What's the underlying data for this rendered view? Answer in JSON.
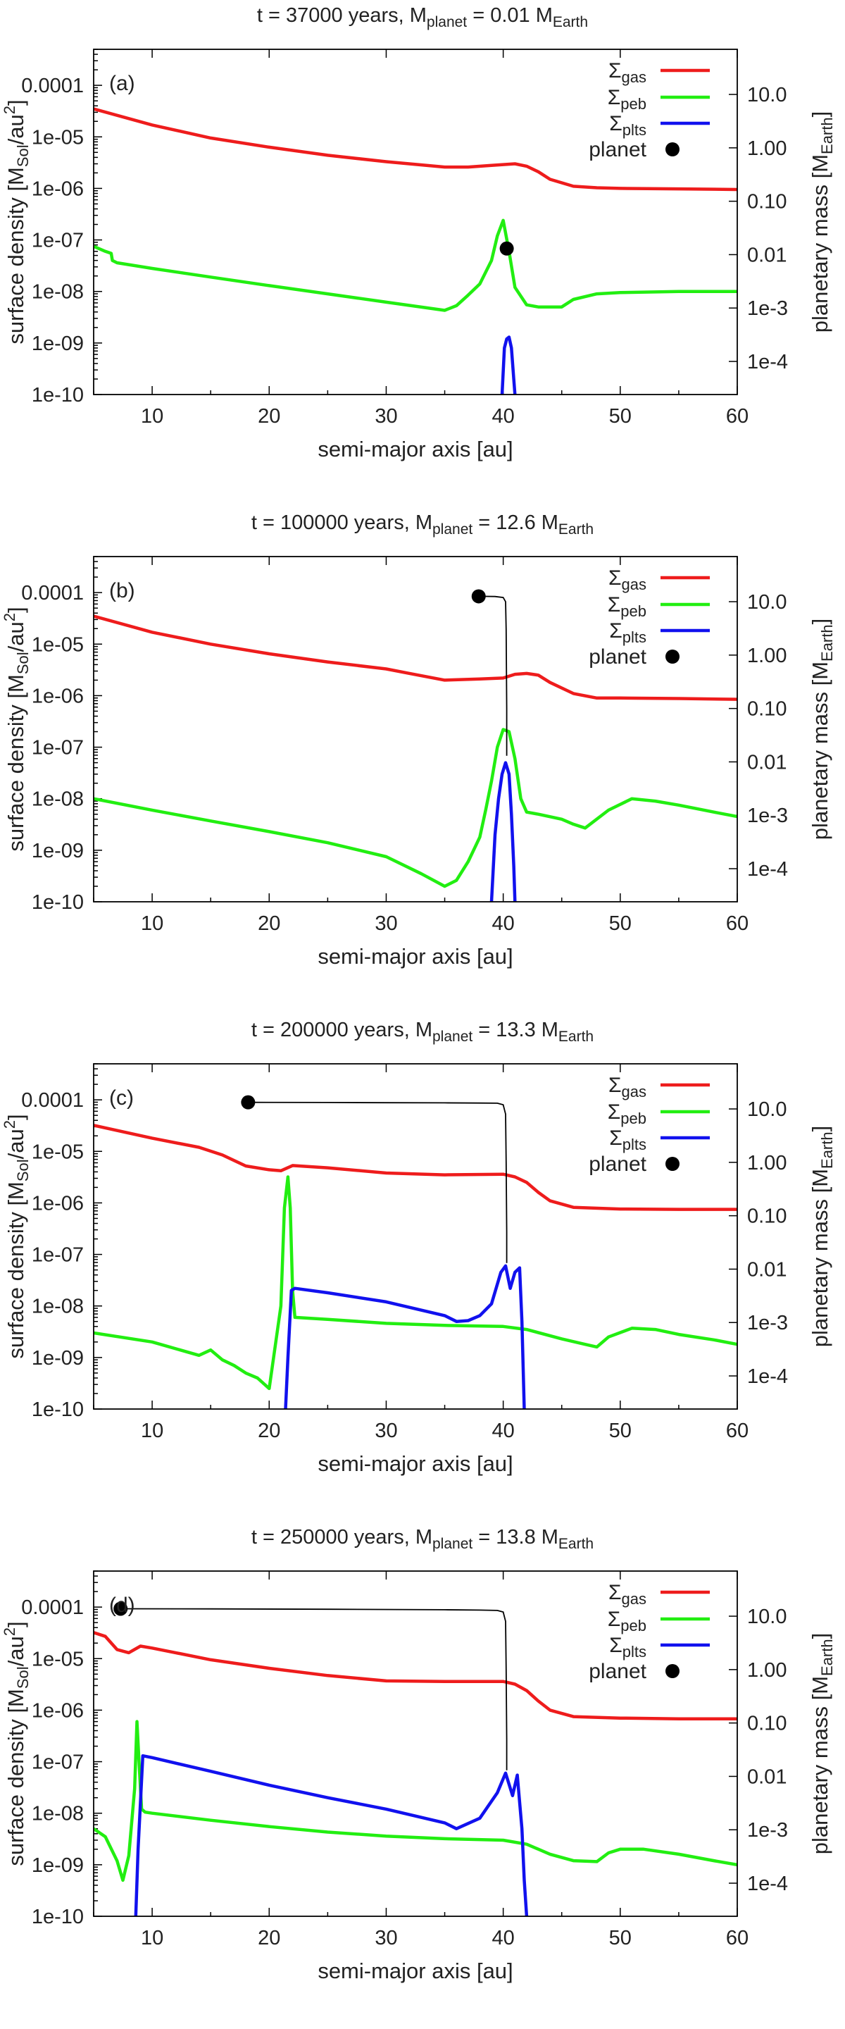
{
  "colors": {
    "gas": "#ee1c1c",
    "peb": "#22ee11",
    "plts": "#1111ee",
    "planet": "#000000",
    "track": "#000000"
  },
  "chart_data": [
    {
      "type": "line",
      "panel_label": "(a)",
      "title": {
        "prefix": "t = 37000 years, M",
        "sub1": "planet",
        "mid": " = 0.01 M",
        "sub2": "Earth"
      },
      "xlabel": "semi-major axis [au]",
      "ylabel": {
        "prefix": "surface density [M",
        "sub": "Sol",
        "suffix": "/au",
        "sup": "2",
        "end": "]"
      },
      "y2label": {
        "prefix": "planetary mass [M",
        "sub": "Earth",
        "end": "]"
      },
      "xlim": [
        5,
        60
      ],
      "ylim": [
        1e-10,
        0.0005
      ],
      "y_scale": "log",
      "y2_scale": "log",
      "x_ticks": [
        "10",
        "20",
        "30",
        "40",
        "50",
        "60"
      ],
      "x_tick_values": [
        10,
        20,
        30,
        40,
        50,
        60
      ],
      "y_ticks": [
        "1e-10",
        "1e-09",
        "1e-08",
        "1e-07",
        "1e-06",
        "1e-05",
        "0.0001"
      ],
      "y_tick_values": [
        1e-10,
        1e-09,
        1e-08,
        1e-07,
        1e-06,
        1e-05,
        0.0001
      ],
      "y2_ticks": [
        "1e-4",
        "1e-3",
        "0.01",
        "0.10",
        "1.00",
        "10.0"
      ],
      "y2_tick_values": [
        0.0001,
        0.001,
        0.01,
        0.1,
        1.0,
        10.0
      ],
      "legend": [
        {
          "sym": "Σ",
          "sub": "gas",
          "key": "gas"
        },
        {
          "sym": "Σ",
          "sub": "peb",
          "key": "peb"
        },
        {
          "sym": "Σ",
          "sub": "plts",
          "key": "plts"
        },
        {
          "sym": "",
          "sub": "",
          "text": "planet",
          "key": "planet"
        }
      ],
      "series": [
        {
          "key": "gas",
          "x": [
            5,
            10,
            15,
            20,
            25,
            30,
            35,
            37,
            39,
            41,
            42,
            43,
            44,
            46,
            48,
            50,
            55,
            60
          ],
          "y": [
            3.5e-05,
            1.7e-05,
            9.5e-06,
            6.3e-06,
            4.4e-06,
            3.3e-06,
            2.6e-06,
            2.6e-06,
            2.8e-06,
            3e-06,
            2.7e-06,
            2.1e-06,
            1.5e-06,
            1.1e-06,
            1.03e-06,
            1e-06,
            9.8e-07,
            9.5e-07
          ]
        },
        {
          "key": "peb",
          "x": [
            5,
            6,
            6.5,
            6.6,
            7,
            10,
            15,
            20,
            25,
            30,
            35,
            36,
            37,
            38,
            39,
            39.5,
            40,
            40.5,
            41,
            42,
            43,
            45,
            46,
            48,
            50,
            55,
            60
          ],
          "y": [
            7.5e-08,
            6e-08,
            5.5e-08,
            4e-08,
            3.6e-08,
            2.8e-08,
            1.9e-08,
            1.3e-08,
            9e-09,
            6.2e-09,
            4.3e-09,
            5.3e-09,
            8.5e-09,
            1.4e-08,
            4e-08,
            1.2e-07,
            2.4e-07,
            6e-08,
            1.2e-08,
            5.5e-09,
            5e-09,
            5e-09,
            7e-09,
            9e-09,
            9.5e-09,
            1e-08,
            1e-08
          ]
        },
        {
          "key": "plts",
          "x": [
            39.9,
            40.1,
            40.3,
            40.5,
            40.7,
            40.9,
            41.0
          ],
          "y": [
            1e-10,
            8e-10,
            1.2e-09,
            1.3e-09,
            8e-10,
            2e-10,
            1e-10
          ]
        }
      ],
      "planet": {
        "a": 40.3,
        "mass": 0.013
      },
      "planet_track": {
        "a": [
          40.3
        ],
        "mass": [
          0.013
        ]
      }
    },
    {
      "type": "line",
      "panel_label": "(b)",
      "title": {
        "prefix": "t = 100000 years, M",
        "sub1": "planet",
        "mid": " = 12.6 M",
        "sub2": "Earth"
      },
      "xlabel": "semi-major axis [au]",
      "ylabel": {
        "prefix": "surface density [M",
        "sub": "Sol",
        "suffix": "/au",
        "sup": "2",
        "end": "]"
      },
      "y2label": {
        "prefix": "planetary mass [M",
        "sub": "Earth",
        "end": "]"
      },
      "xlim": [
        5,
        60
      ],
      "ylim": [
        1e-10,
        0.0005
      ],
      "y_scale": "log",
      "y2_scale": "log",
      "x_ticks": [
        "10",
        "20",
        "30",
        "40",
        "50",
        "60"
      ],
      "x_tick_values": [
        10,
        20,
        30,
        40,
        50,
        60
      ],
      "y_ticks": [
        "1e-10",
        "1e-09",
        "1e-08",
        "1e-07",
        "1e-06",
        "1e-05",
        "0.0001"
      ],
      "y_tick_values": [
        1e-10,
        1e-09,
        1e-08,
        1e-07,
        1e-06,
        1e-05,
        0.0001
      ],
      "y2_ticks": [
        "1e-4",
        "1e-3",
        "0.01",
        "0.10",
        "1.00",
        "10.0"
      ],
      "y2_tick_values": [
        0.0001,
        0.001,
        0.01,
        0.1,
        1.0,
        10.0
      ],
      "legend": [
        {
          "sym": "Σ",
          "sub": "gas",
          "key": "gas"
        },
        {
          "sym": "Σ",
          "sub": "peb",
          "key": "peb"
        },
        {
          "sym": "Σ",
          "sub": "plts",
          "key": "plts"
        },
        {
          "sym": "",
          "sub": "",
          "text": "planet",
          "key": "planet"
        }
      ],
      "series": [
        {
          "key": "gas",
          "x": [
            5,
            10,
            15,
            20,
            25,
            30,
            32,
            35,
            38,
            40,
            41,
            42,
            43,
            44,
            46,
            48,
            50,
            55,
            60
          ],
          "y": [
            3.5e-05,
            1.7e-05,
            1e-05,
            6.5e-06,
            4.5e-06,
            3.3e-06,
            2.7e-06,
            2e-06,
            2.1e-06,
            2.2e-06,
            2.6e-06,
            2.7e-06,
            2.5e-06,
            1.8e-06,
            1.1e-06,
            9e-07,
            9e-07,
            8.8e-07,
            8.5e-07
          ]
        },
        {
          "key": "peb",
          "x": [
            5,
            10,
            15,
            20,
            25,
            30,
            33,
            35,
            36,
            37,
            38,
            38.5,
            39,
            39.5,
            40,
            40.5,
            41,
            41.5,
            42,
            43,
            45,
            46,
            47,
            49,
            51,
            53,
            55,
            58,
            60
          ],
          "y": [
            1e-08,
            6e-09,
            3.7e-09,
            2.3e-09,
            1.4e-09,
            7.5e-10,
            3.5e-10,
            2e-10,
            2.6e-10,
            6e-10,
            1.8e-09,
            6e-09,
            2.2e-08,
            1e-07,
            2.2e-07,
            2e-07,
            6e-08,
            1e-08,
            5.5e-09,
            5e-09,
            4e-09,
            3.2e-09,
            2.7e-09,
            6e-09,
            1e-08,
            9e-09,
            7.5e-09,
            5.5e-09,
            4.5e-09
          ]
        },
        {
          "key": "plts",
          "x": [
            39,
            39.3,
            39.6,
            39.9,
            40.2,
            40.5,
            40.7,
            40.9,
            41.0
          ],
          "y": [
            1e-10,
            2e-09,
            1e-08,
            3e-08,
            5e-08,
            3e-08,
            5e-09,
            5e-10,
            1e-10
          ]
        }
      ],
      "planet": {
        "a": 37.9,
        "mass": 12.6
      },
      "planet_track": {
        "a": [
          37.9,
          39.3,
          40.0,
          40.2,
          40.25,
          40.3,
          40.3
        ],
        "mass": [
          12.6,
          12.5,
          12.0,
          10.0,
          3.0,
          0.1,
          0.013
        ]
      }
    },
    {
      "type": "line",
      "panel_label": "(c)",
      "title": {
        "prefix": "t = 200000 years, M",
        "sub1": "planet",
        "mid": " = 13.3 M",
        "sub2": "Earth"
      },
      "xlabel": "semi-major axis [au]",
      "ylabel": {
        "prefix": "surface density [M",
        "sub": "Sol",
        "suffix": "/au",
        "sup": "2",
        "end": "]"
      },
      "y2label": {
        "prefix": "planetary mass [M",
        "sub": "Earth",
        "end": "]"
      },
      "xlim": [
        5,
        60
      ],
      "ylim": [
        1e-10,
        0.0005
      ],
      "y_scale": "log",
      "y2_scale": "log",
      "x_ticks": [
        "10",
        "20",
        "30",
        "40",
        "50",
        "60"
      ],
      "x_tick_values": [
        10,
        20,
        30,
        40,
        50,
        60
      ],
      "y_ticks": [
        "1e-10",
        "1e-09",
        "1e-08",
        "1e-07",
        "1e-06",
        "1e-05",
        "0.0001"
      ],
      "y_tick_values": [
        1e-10,
        1e-09,
        1e-08,
        1e-07,
        1e-06,
        1e-05,
        0.0001
      ],
      "y2_ticks": [
        "1e-4",
        "1e-3",
        "0.01",
        "0.10",
        "1.00",
        "10.0"
      ],
      "y2_tick_values": [
        0.0001,
        0.001,
        0.01,
        0.1,
        1.0,
        10.0
      ],
      "legend": [
        {
          "sym": "Σ",
          "sub": "gas",
          "key": "gas"
        },
        {
          "sym": "Σ",
          "sub": "peb",
          "key": "peb"
        },
        {
          "sym": "Σ",
          "sub": "plts",
          "key": "plts"
        },
        {
          "sym": "",
          "sub": "",
          "text": "planet",
          "key": "planet"
        }
      ],
      "series": [
        {
          "key": "gas",
          "x": [
            5,
            10,
            14,
            16,
            18,
            20,
            21,
            22,
            25,
            30,
            35,
            40,
            41,
            42,
            43,
            44,
            46,
            50,
            55,
            60
          ],
          "y": [
            3.2e-05,
            1.8e-05,
            1.2e-05,
            8.5e-06,
            5.2e-06,
            4.4e-06,
            4.2e-06,
            5.3e-06,
            4.8e-06,
            3.8e-06,
            3.5e-06,
            3.6e-06,
            3.2e-06,
            2.5e-06,
            1.6e-06,
            1.1e-06,
            8.2e-07,
            7.6e-07,
            7.5e-07,
            7.5e-07
          ]
        },
        {
          "key": "peb",
          "x": [
            5,
            10,
            14,
            15,
            16,
            17,
            18,
            19,
            20,
            21,
            21.3,
            21.6,
            21.8,
            22,
            22.2,
            25,
            30,
            35,
            40,
            42,
            45,
            47,
            48,
            49,
            51,
            53,
            55,
            58,
            60
          ],
          "y": [
            3e-09,
            2e-09,
            1.1e-09,
            1.4e-09,
            9e-10,
            7e-10,
            5e-10,
            4e-10,
            2.5e-10,
            1e-08,
            8e-07,
            3.2e-06,
            8e-07,
            2e-08,
            6e-09,
            5.5e-09,
            4.6e-09,
            4.2e-09,
            4e-09,
            3.5e-09,
            2.3e-09,
            1.8e-09,
            1.6e-09,
            2.5e-09,
            3.7e-09,
            3.5e-09,
            2.8e-09,
            2.2e-09,
            1.8e-09
          ]
        },
        {
          "key": "plts",
          "x": [
            21.4,
            21.6,
            21.9,
            22.2,
            25,
            30,
            35,
            36,
            37,
            38,
            39,
            39.8,
            40.2,
            40.6,
            41.0,
            41.4,
            41.6,
            41.8
          ],
          "y": [
            1e-10,
            1e-09,
            2e-08,
            2.2e-08,
            1.8e-08,
            1.2e-08,
            6.5e-09,
            5e-09,
            5.2e-09,
            6.5e-09,
            1.1e-08,
            4.5e-08,
            6e-08,
            2.2e-08,
            4.5e-08,
            5.5e-08,
            5e-09,
            1e-10
          ]
        }
      ],
      "planet": {
        "a": 18.2,
        "mass": 13.3
      },
      "planet_track": {
        "a": [
          18.2,
          25,
          30,
          35,
          38,
          39.5,
          40.0,
          40.2,
          40.25,
          40.3,
          40.3
        ],
        "mass": [
          13.3,
          13.2,
          13.1,
          13.0,
          12.9,
          12.8,
          12.0,
          8.0,
          1.0,
          0.05,
          0.013
        ]
      }
    },
    {
      "type": "line",
      "panel_label": "(d)",
      "title": {
        "prefix": "t = 250000 years, M",
        "sub1": "planet",
        "mid": " = 13.8 M",
        "sub2": "Earth"
      },
      "xlabel": "semi-major axis [au]",
      "ylabel": {
        "prefix": "surface density [M",
        "sub": "Sol",
        "suffix": "/au",
        "sup": "2",
        "end": "]"
      },
      "y2label": {
        "prefix": "planetary mass [M",
        "sub": "Earth",
        "end": "]"
      },
      "xlim": [
        5,
        60
      ],
      "ylim": [
        1e-10,
        0.0005
      ],
      "y_scale": "log",
      "y2_scale": "log",
      "x_ticks": [
        "10",
        "20",
        "30",
        "40",
        "50",
        "60"
      ],
      "x_tick_values": [
        10,
        20,
        30,
        40,
        50,
        60
      ],
      "y_ticks": [
        "1e-10",
        "1e-09",
        "1e-08",
        "1e-07",
        "1e-06",
        "1e-05",
        "0.0001"
      ],
      "y_tick_values": [
        1e-10,
        1e-09,
        1e-08,
        1e-07,
        1e-06,
        1e-05,
        0.0001
      ],
      "y2_ticks": [
        "1e-4",
        "1e-3",
        "0.01",
        "0.10",
        "1.00",
        "10.0"
      ],
      "y2_tick_values": [
        0.0001,
        0.001,
        0.01,
        0.1,
        1.0,
        10.0
      ],
      "legend": [
        {
          "sym": "Σ",
          "sub": "gas",
          "key": "gas"
        },
        {
          "sym": "Σ",
          "sub": "peb",
          "key": "peb"
        },
        {
          "sym": "Σ",
          "sub": "plts",
          "key": "plts"
        },
        {
          "sym": "",
          "sub": "",
          "text": "planet",
          "key": "planet"
        }
      ],
      "series": [
        {
          "key": "gas",
          "x": [
            5,
            6,
            7,
            8,
            9,
            10,
            12,
            15,
            20,
            25,
            30,
            35,
            40,
            41,
            42,
            43,
            44,
            46,
            50,
            55,
            60
          ],
          "y": [
            3.2e-05,
            2.7e-05,
            1.5e-05,
            1.3e-05,
            1.75e-05,
            1.6e-05,
            1.3e-05,
            9.5e-06,
            6.5e-06,
            4.7e-06,
            3.7e-06,
            3.6e-06,
            3.6e-06,
            3.2e-06,
            2.4e-06,
            1.5e-06,
            1e-06,
            7.5e-07,
            7e-07,
            6.8e-07,
            6.8e-07
          ]
        },
        {
          "key": "peb",
          "x": [
            5,
            6,
            7,
            7.5,
            8,
            8.5,
            8.7,
            8.9,
            9.1,
            9.4,
            10,
            15,
            20,
            25,
            30,
            35,
            40,
            42,
            44,
            46,
            48,
            49,
            50,
            52,
            55,
            58,
            60
          ],
          "y": [
            5e-09,
            3.5e-09,
            1.2e-09,
            5e-10,
            1.5e-09,
            3e-08,
            6e-07,
            8e-08,
            1.2e-08,
            1.05e-08,
            1e-08,
            7.3e-09,
            5.5e-09,
            4.3e-09,
            3.6e-09,
            3.2e-09,
            3e-09,
            2.5e-09,
            1.6e-09,
            1.2e-09,
            1.15e-09,
            1.7e-09,
            2e-09,
            2e-09,
            1.6e-09,
            1.2e-09,
            1e-09
          ]
        },
        {
          "key": "plts",
          "x": [
            8.6,
            8.8,
            9.2,
            10,
            15,
            20,
            25,
            30,
            35,
            36,
            38,
            39.5,
            40.2,
            40.8,
            41.2,
            41.6,
            41.8,
            42.0
          ],
          "y": [
            1e-10,
            2e-09,
            1.3e-07,
            1.2e-07,
            6.5e-08,
            3.5e-08,
            2e-08,
            1.2e-08,
            6.5e-09,
            5e-09,
            8e-09,
            2.5e-08,
            6e-08,
            2.2e-08,
            5.5e-08,
            5e-09,
            5e-10,
            1e-10
          ]
        }
      ],
      "planet": {
        "a": 7.3,
        "mass": 13.8
      },
      "planet_track": {
        "a": [
          7.3,
          15,
          25,
          35,
          38,
          39.5,
          40.0,
          40.2,
          40.25,
          40.3,
          40.3
        ],
        "mass": [
          13.8,
          13.7,
          13.5,
          13.2,
          13.0,
          12.8,
          12.0,
          8.0,
          1.0,
          0.05,
          0.013
        ]
      }
    }
  ]
}
